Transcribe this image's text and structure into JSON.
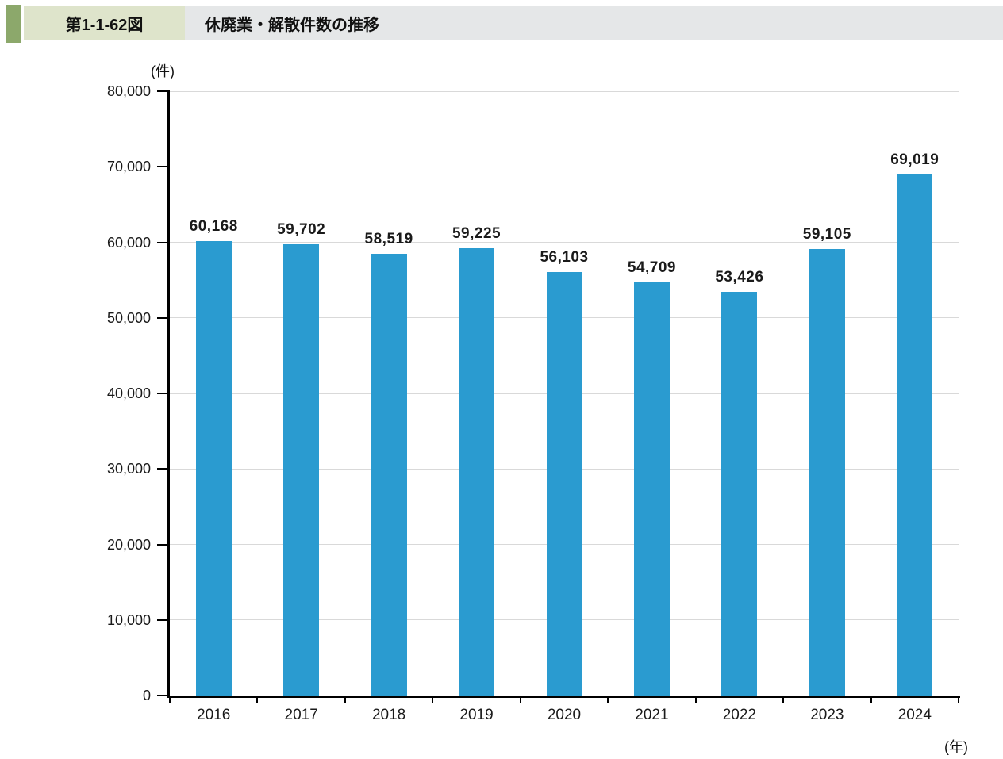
{
  "header": {
    "figure_number": "第1-1-62図",
    "title": "休廃業・解散件数の推移"
  },
  "chart_data": {
    "type": "bar",
    "title": "休廃業・解散件数の推移",
    "categories": [
      "2016",
      "2017",
      "2018",
      "2019",
      "2020",
      "2021",
      "2022",
      "2023",
      "2024"
    ],
    "values": [
      60168,
      59702,
      58519,
      59225,
      56103,
      54709,
      53426,
      59105,
      69019
    ],
    "data_labels": [
      "60,168",
      "59,702",
      "58,519",
      "59,225",
      "56,103",
      "54,709",
      "53,426",
      "59,105",
      "69,019"
    ],
    "xlabel": "(年)",
    "ylabel": "(件)",
    "ylim": [
      0,
      80000
    ],
    "ytick_step": 10000,
    "ytick_labels": [
      "0",
      "10,000",
      "20,000",
      "30,000",
      "40,000",
      "50,000",
      "60,000",
      "70,000",
      "80,000"
    ],
    "grid": true,
    "legend": "none"
  },
  "colors": {
    "accent_bar": "#8CA86B",
    "figure_label_bg": "#DEE4CB",
    "title_strip_bg": "#E5E7E8",
    "bar": "#2A9BD0",
    "gridline": "#D9D9D9",
    "axis": "#000000"
  }
}
